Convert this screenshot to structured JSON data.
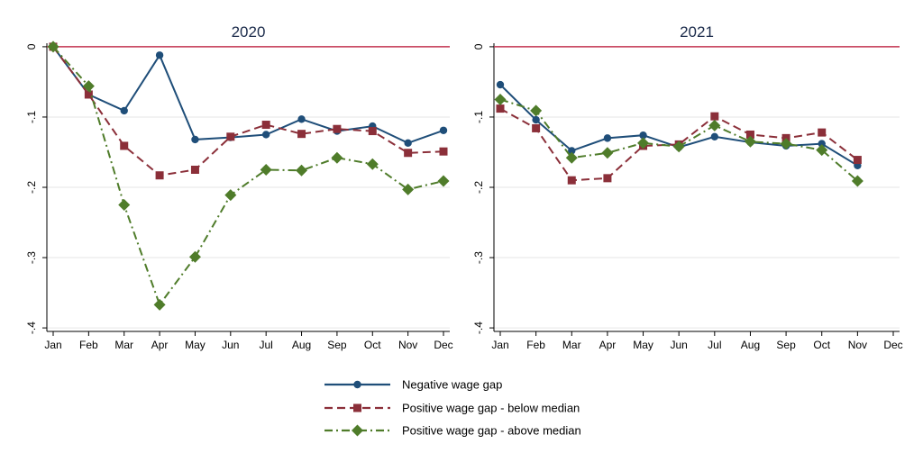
{
  "chart_data": [
    {
      "type": "line",
      "title": "2020",
      "xlabel": "",
      "ylabel": "",
      "categories": [
        "Jan",
        "Feb",
        "Mar",
        "Apr",
        "May",
        "Jun",
        "Jul",
        "Aug",
        "Sep",
        "Oct",
        "Nov",
        "Dec"
      ],
      "yticks": [
        "0",
        "-.1",
        "-.2",
        "-.3",
        "-.4"
      ],
      "ylim": [
        -0.405,
        0.005
      ],
      "reference_line": 0,
      "grid": true,
      "series": [
        {
          "name": "Negative wage gap",
          "values": [
            0,
            -0.068,
            -0.091,
            -0.012,
            -0.132,
            -0.129,
            -0.125,
            -0.103,
            -0.12,
            -0.113,
            -0.137,
            -0.119
          ]
        },
        {
          "name": "Positive wage gap - below median",
          "values": [
            0,
            -0.068,
            -0.141,
            -0.183,
            -0.175,
            -0.128,
            -0.111,
            -0.124,
            -0.117,
            -0.12,
            -0.151,
            -0.149
          ]
        },
        {
          "name": "Positive wage gap - above median",
          "values": [
            0,
            -0.056,
            -0.225,
            -0.367,
            -0.299,
            -0.211,
            -0.175,
            -0.176,
            -0.158,
            -0.167,
            -0.203,
            -0.191
          ]
        }
      ]
    },
    {
      "type": "line",
      "title": "2021",
      "xlabel": "",
      "ylabel": "",
      "categories": [
        "Jan",
        "Feb",
        "Mar",
        "Apr",
        "May",
        "Jun",
        "Jul",
        "Aug",
        "Sep",
        "Oct",
        "Nov",
        "Dec"
      ],
      "yticks": [
        "0",
        "-.1",
        "-.2",
        "-.3",
        "-.4"
      ],
      "ylim": [
        -0.405,
        0.005
      ],
      "reference_line": 0,
      "grid": true,
      "series": [
        {
          "name": "Negative wage gap",
          "values": [
            -0.054,
            -0.104,
            -0.148,
            -0.13,
            -0.126,
            -0.143,
            -0.128,
            -0.136,
            -0.141,
            -0.138,
            -0.169,
            null
          ]
        },
        {
          "name": "Positive wage gap - below median",
          "values": [
            -0.088,
            -0.116,
            -0.19,
            -0.187,
            -0.141,
            -0.139,
            -0.099,
            -0.125,
            -0.13,
            -0.122,
            -0.161,
            null
          ]
        },
        {
          "name": "Positive wage gap - above median",
          "values": [
            -0.075,
            -0.091,
            -0.158,
            -0.151,
            -0.137,
            -0.142,
            -0.112,
            -0.135,
            -0.138,
            -0.147,
            -0.191,
            null
          ]
        }
      ]
    }
  ],
  "legend": {
    "placement": "bottom",
    "items": [
      {
        "label": "Negative wage gap",
        "color": "#1f4e79",
        "marker": "circle",
        "dash": "solid"
      },
      {
        "label": "Positive wage gap - below median",
        "color": "#8b2f39",
        "marker": "square",
        "dash": "dashed"
      },
      {
        "label": "Positive wage gap - above median",
        "color": "#4f7c2a",
        "marker": "diamond",
        "dash": "dash-dot"
      }
    ]
  },
  "colors": {
    "reference_line": "#c2334f",
    "grid": "#e6e6e6",
    "axis": "#000000"
  }
}
